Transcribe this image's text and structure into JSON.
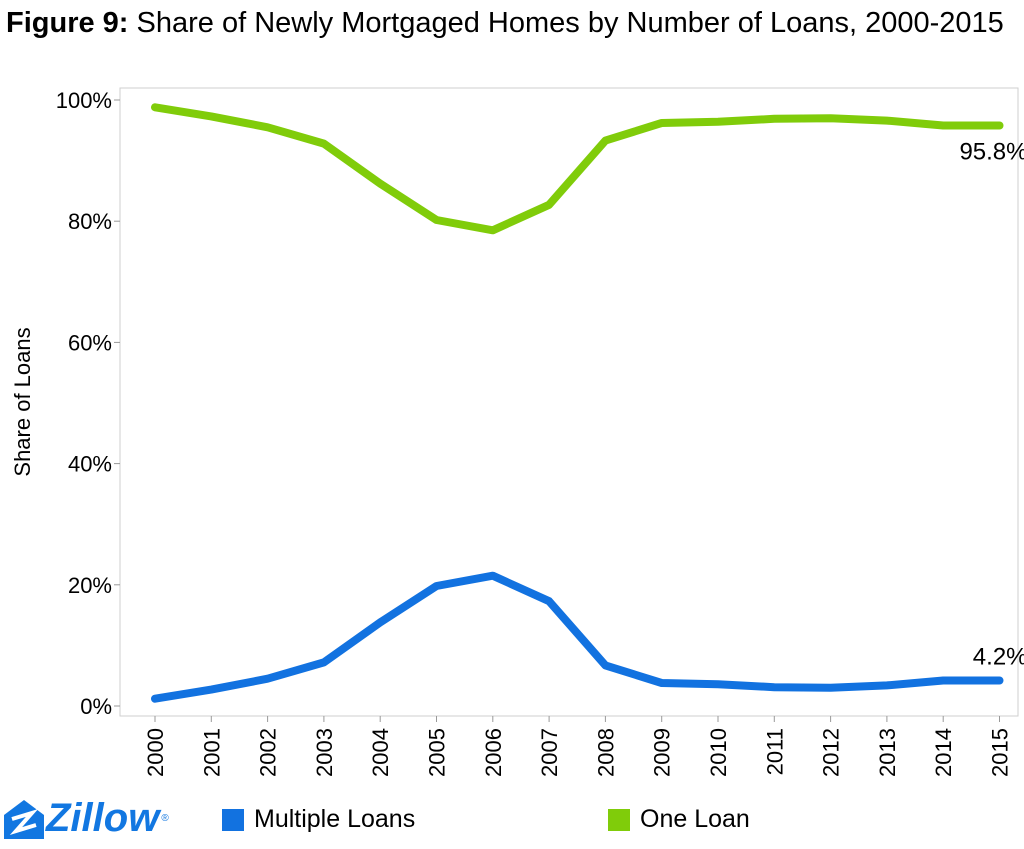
{
  "title": {
    "prefix": "Figure 9:",
    "text": " Share of Newly Mortgaged Homes by Number of Loans, 2000-2015"
  },
  "logo": {
    "text": "Zillow",
    "mark": "®"
  },
  "colors": {
    "multiple": "#1272e0",
    "one": "#80cc0a"
  },
  "chart_data": {
    "type": "line",
    "title": "Figure 9: Share of Newly Mortgaged Homes by Number of Loans, 2000-2015",
    "xlabel": "",
    "ylabel": "Share of Loans",
    "ylim": [
      0,
      100
    ],
    "yticks": [
      "0%",
      "20%",
      "40%",
      "60%",
      "80%",
      "100%"
    ],
    "grid": false,
    "legend": "bottom",
    "x": [
      "2000",
      "2001",
      "2002",
      "2003",
      "2004",
      "2005",
      "2006",
      "2007",
      "2008",
      "2009",
      "2010",
      "2011",
      "2012",
      "2013",
      "2014",
      "2015"
    ],
    "series": [
      {
        "name": "Multiple Loans",
        "color": "#1272e0",
        "values": [
          1.2,
          2.7,
          4.5,
          7.2,
          13.8,
          19.8,
          21.5,
          17.3,
          6.7,
          3.8,
          3.6,
          3.1,
          3.0,
          3.4,
          4.2,
          4.2
        ]
      },
      {
        "name": "One Loan",
        "color": "#80cc0a",
        "values": [
          98.8,
          97.3,
          95.5,
          92.8,
          86.2,
          80.2,
          78.5,
          82.7,
          93.3,
          96.2,
          96.4,
          96.9,
          97.0,
          96.6,
          95.8,
          95.8
        ]
      }
    ],
    "annotations": [
      {
        "series": "One Loan",
        "x": "2015",
        "text": "95.8%"
      },
      {
        "series": "Multiple Loans",
        "x": "2015",
        "text": "4.2%"
      }
    ]
  }
}
